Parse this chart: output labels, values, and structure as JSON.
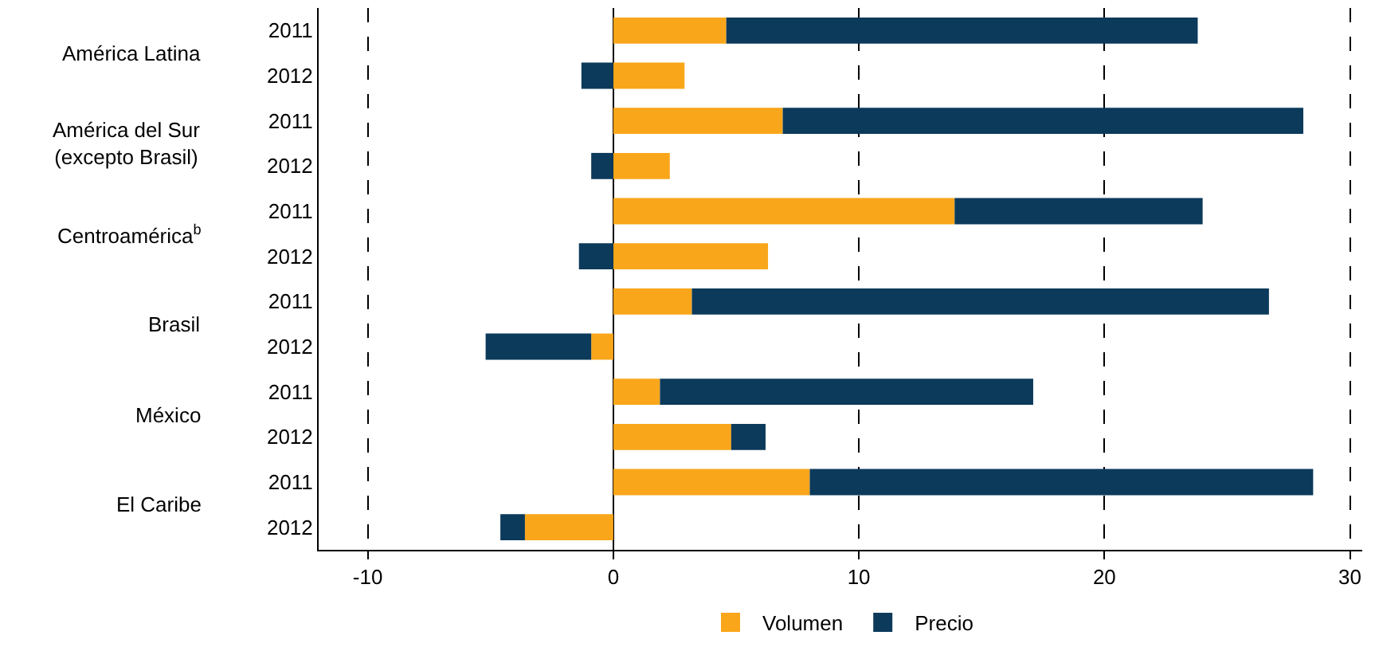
{
  "chart_data": {
    "type": "bar",
    "orientation": "horizontal",
    "stacked": true,
    "categories": [
      "2011",
      "2012",
      "2011",
      "2012",
      "2011",
      "2012",
      "2011",
      "2012",
      "2011",
      "2012",
      "2011",
      "2012"
    ],
    "series": [
      {
        "name": "Volumen",
        "color": "#f9a61a",
        "values": [
          4.6,
          2.9,
          6.9,
          2.3,
          13.9,
          6.3,
          3.2,
          -0.9,
          1.9,
          4.8,
          8.0,
          -3.6
        ]
      },
      {
        "name": "Precio",
        "color": "#0c3a5b",
        "values": [
          19.2,
          -1.3,
          21.2,
          -0.9,
          10.1,
          -1.4,
          23.5,
          -4.3,
          15.2,
          1.4,
          20.5,
          -1.0
        ]
      }
    ],
    "annotations": [
      "América Latina",
      "América del Sur\n(excepto Brasil)",
      "Centroamérica$^{b}$",
      "Brasil",
      "México",
      "El Caribe"
    ],
    "xlim": [
      -12,
      30.5
    ],
    "xticks": [
      -10,
      0,
      10,
      20,
      30
    ],
    "grid": "x",
    "legend": "bottom"
  }
}
